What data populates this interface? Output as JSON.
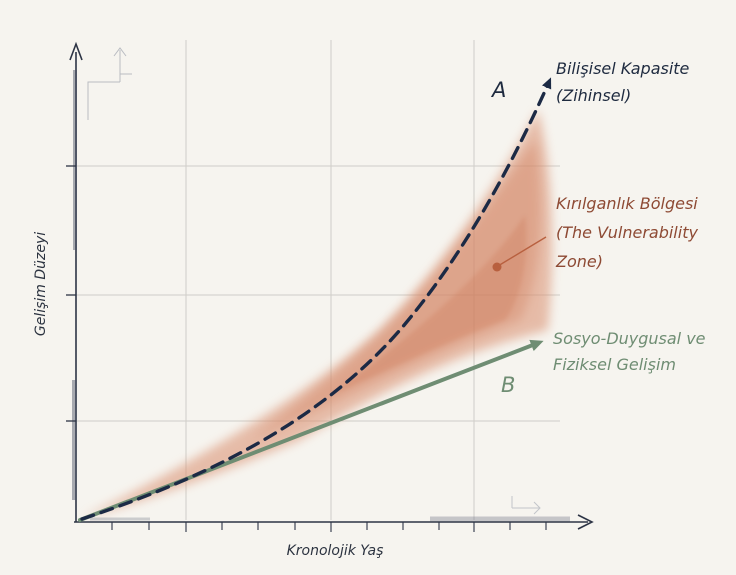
{
  "axes": {
    "y_label": "Gelişim Düzeyi",
    "x_label": "Kronolojik Yaş"
  },
  "curve_a": {
    "marker": "A",
    "label_lines": [
      "Bilişisel Kapasite",
      "(Zihinsel)"
    ],
    "style": "dashed",
    "color": "#1c2a45"
  },
  "line_b": {
    "marker": "B",
    "label_lines": [
      "Sosyo-Duygusal ve",
      "Fiziksel Gelişim"
    ],
    "style": "solid",
    "color": "#6f8d73"
  },
  "zone": {
    "label_lines": [
      "Kırılganlık Bölgesi",
      "(The Vulnerability",
      "Zone)"
    ],
    "fill_color": "#d98e6e",
    "pointer_color": "#b8603f"
  },
  "grid": {
    "shown": true
  }
}
